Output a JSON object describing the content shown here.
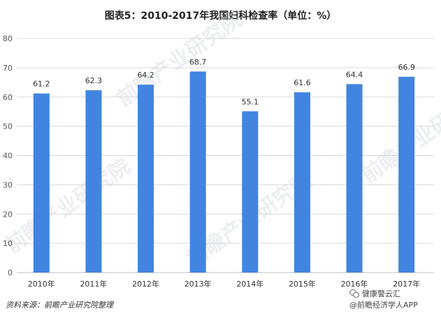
{
  "chart_data": {
    "type": "bar",
    "title": "图表5：2010-2017年我国妇科检查率（单位：%）",
    "categories": [
      "2010年",
      "2011年",
      "2012年",
      "2013年",
      "2014年",
      "2015年",
      "2016年",
      "2017年"
    ],
    "values": [
      61.2,
      62.3,
      64.2,
      68.7,
      55.1,
      61.6,
      64.4,
      66.9
    ],
    "ylim": [
      0,
      80
    ],
    "yticks": [
      0,
      10,
      20,
      30,
      40,
      50,
      60,
      70,
      80
    ],
    "bar_color": "#4185E0",
    "grid": true,
    "data_labels": true
  },
  "source": "资料来源：前瞻产业研究院整理",
  "watermark_text": "前瞻产业研究院",
  "wechat": {
    "line1": "健康警云汇",
    "line2": "@前瞻经济学人APP"
  }
}
